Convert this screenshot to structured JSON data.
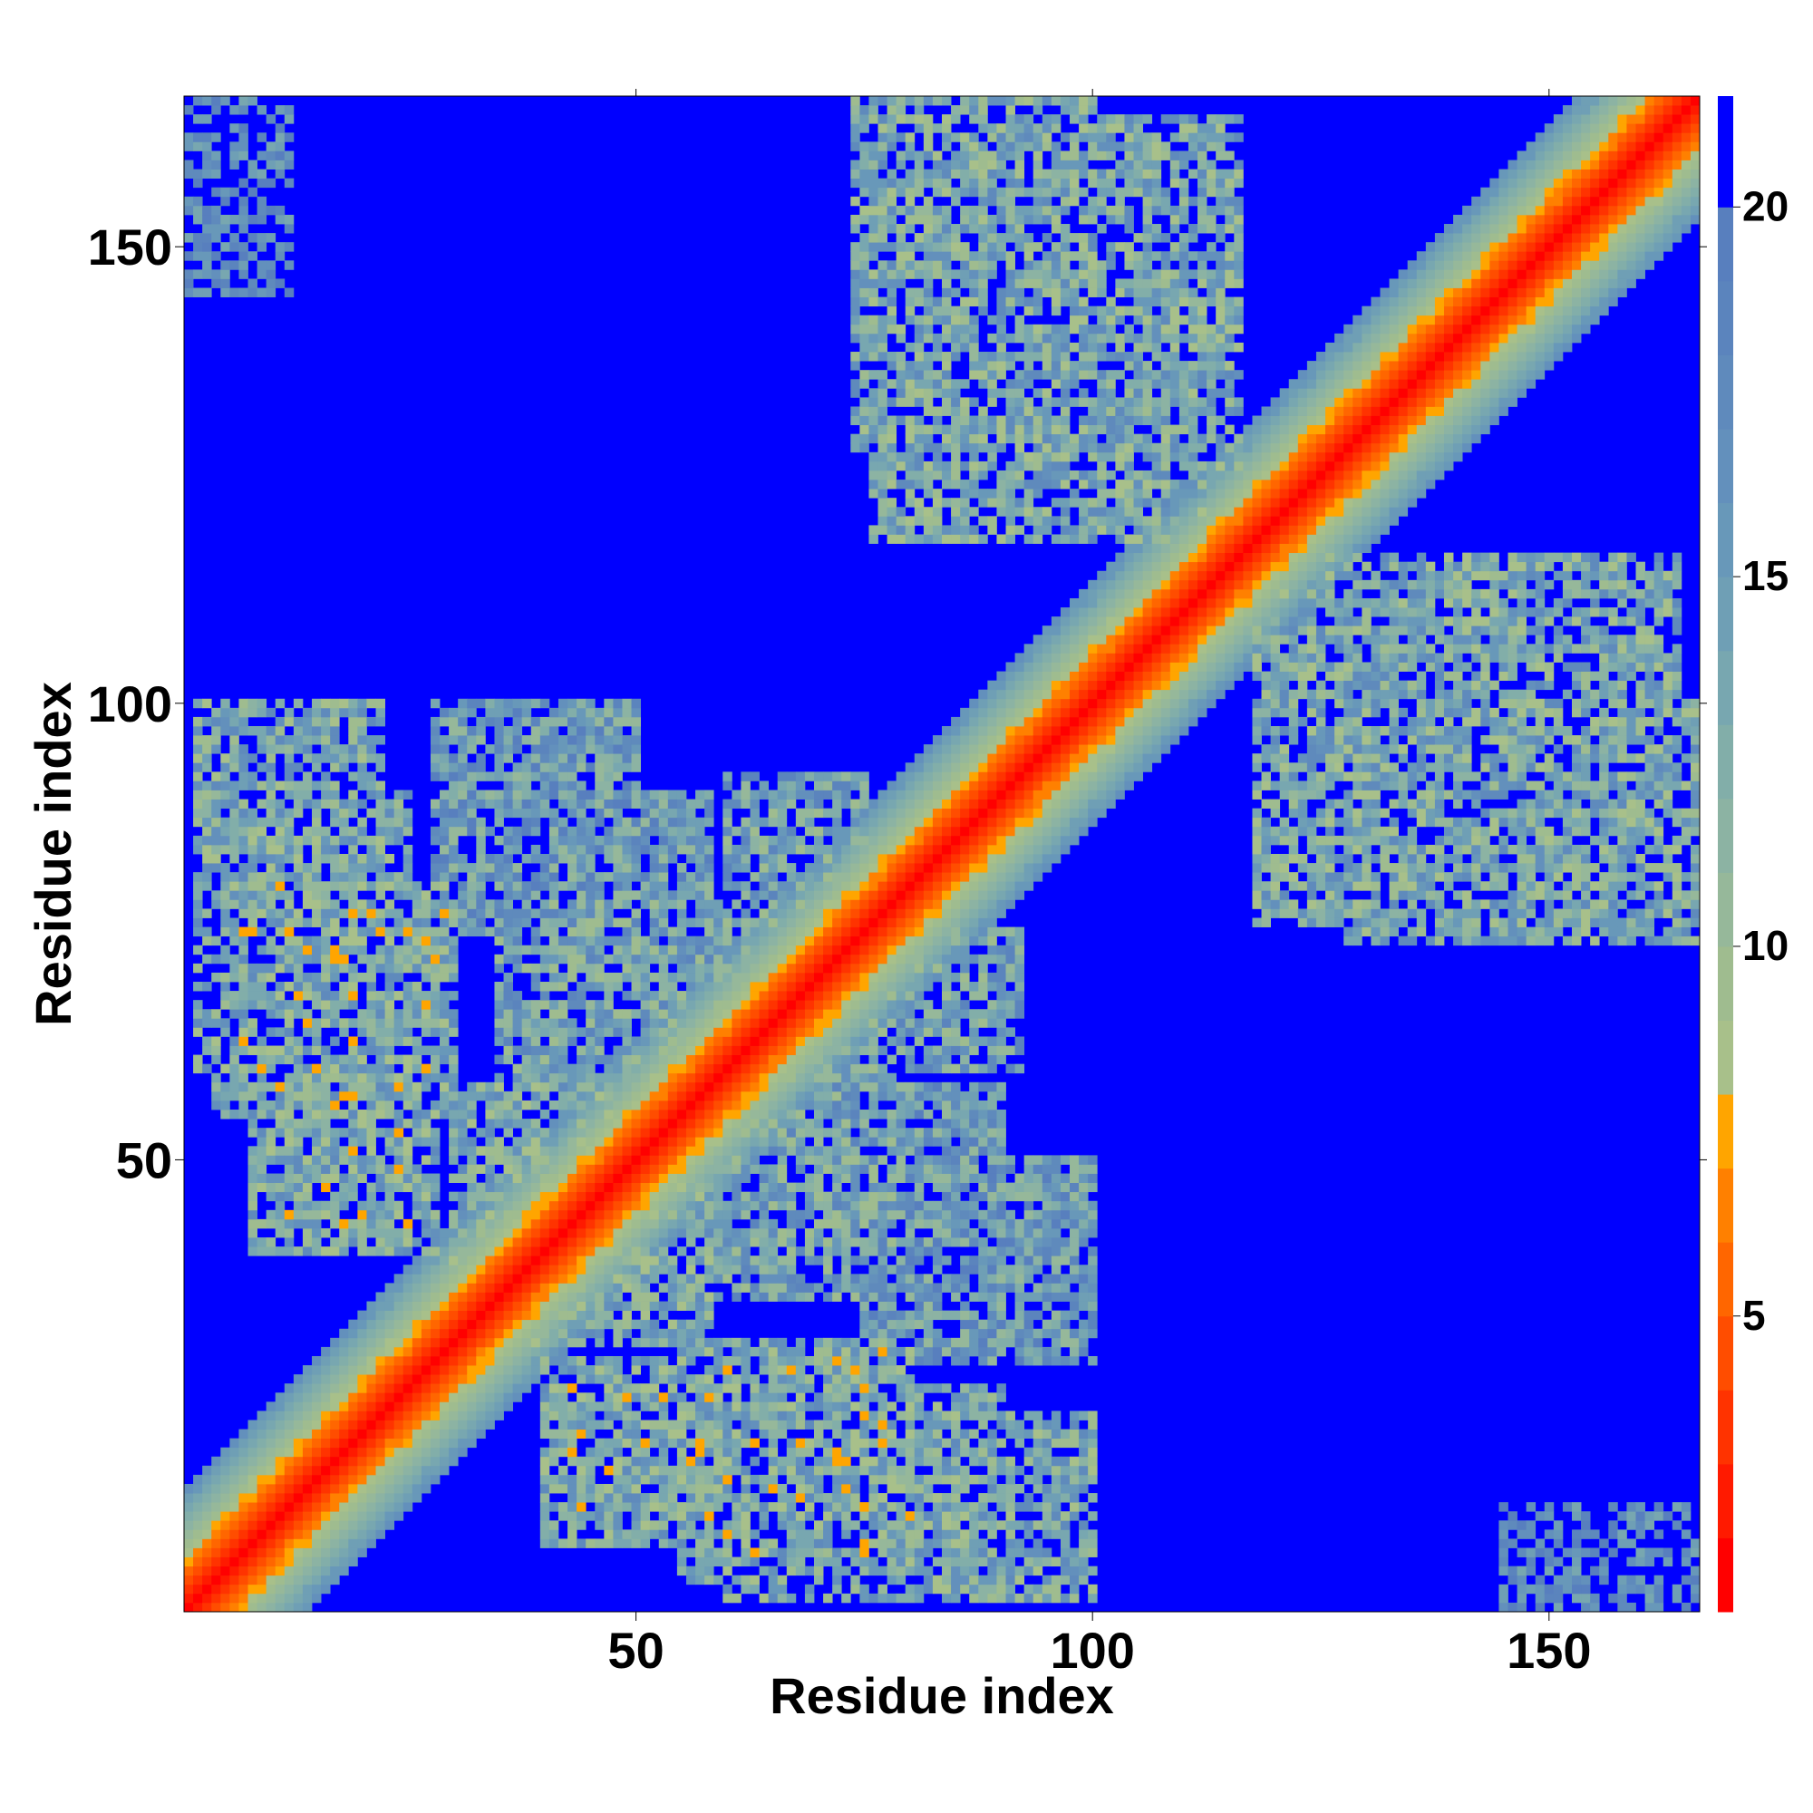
{
  "chart_data": {
    "type": "heatmap",
    "title": "",
    "xlabel": "Residue index",
    "ylabel": "Residue index",
    "n": 166,
    "xlim": [
      1,
      166
    ],
    "ylim": [
      1,
      166
    ],
    "x_ticks": [
      50,
      100,
      150
    ],
    "y_ticks": [
      50,
      100,
      150
    ],
    "colorbar": {
      "min": 1,
      "max": 21.5,
      "ticks": [
        5,
        10,
        15,
        20
      ],
      "levels": [
        {
          "to": 2,
          "color": "#ff0000"
        },
        {
          "to": 3,
          "color": "#ff1a00"
        },
        {
          "to": 4,
          "color": "#ff3300"
        },
        {
          "to": 5,
          "color": "#ff4d00"
        },
        {
          "to": 6,
          "color": "#ff6600"
        },
        {
          "to": 7,
          "color": "#ff8000"
        },
        {
          "to": 8,
          "color": "#ffa500"
        },
        {
          "to": 9,
          "color": "#a8c08a"
        },
        {
          "to": 10,
          "color": "#9fbc8f"
        },
        {
          "to": 11,
          "color": "#96b89a"
        },
        {
          "to": 12,
          "color": "#8cb3a3"
        },
        {
          "to": 13,
          "color": "#82aea9"
        },
        {
          "to": 14,
          "color": "#78a7b0"
        },
        {
          "to": 15,
          "color": "#6f9fb5"
        },
        {
          "to": 16,
          "color": "#6898b9"
        },
        {
          "to": 17,
          "color": "#6390bc"
        },
        {
          "to": 18,
          "color": "#5f8abc"
        },
        {
          "to": 19,
          "color": "#5b84bd"
        },
        {
          "to": 20,
          "color": "#587fbe"
        },
        {
          "to": 21.5,
          "color": "#0000ff"
        }
      ]
    },
    "background_color": "#0000ff",
    "diagonal_band": {
      "core_to": 3,
      "orange_to": 6,
      "green_to": 9,
      "blue_to": 13
    },
    "contact_regions": [
      {
        "i": [
          2,
          22
        ],
        "j": [
          82,
          100
        ],
        "value": 13
      },
      {
        "i": [
          4,
          30
        ],
        "j": [
          55,
          80
        ],
        "value": 12.5
      },
      {
        "i": [
          8,
          28
        ],
        "j": [
          40,
          58
        ],
        "value": 12.5
      },
      {
        "i": [
          30,
          48
        ],
        "j": [
          38,
          58
        ],
        "value": 13
      },
      {
        "i": [
          35,
          62
        ],
        "j": [
          55,
          78
        ],
        "value": 14
      },
      {
        "i": [
          60,
          75
        ],
        "j": [
          72,
          92
        ],
        "value": 14
      },
      {
        "i": [
          68,
          90
        ],
        "j": [
          40,
          58
        ],
        "value": 15
      },
      {
        "i": [
          75,
          100
        ],
        "j": [
          28,
          50
        ],
        "value": 15
      },
      {
        "i": [
          60,
          90
        ],
        "j": [
          2,
          25
        ],
        "value": 13
      },
      {
        "i": [
          74,
          100
        ],
        "j": [
          128,
          166
        ],
        "value": 13
      },
      {
        "i": [
          118,
          164
        ],
        "j": [
          76,
          116
        ],
        "value": 13
      },
      {
        "i": [
          1,
          12
        ],
        "j": [
          145,
          166
        ],
        "value": 18
      },
      {
        "i": [
          145,
          156
        ],
        "j": [
          1,
          12
        ],
        "value": 18
      }
    ]
  }
}
